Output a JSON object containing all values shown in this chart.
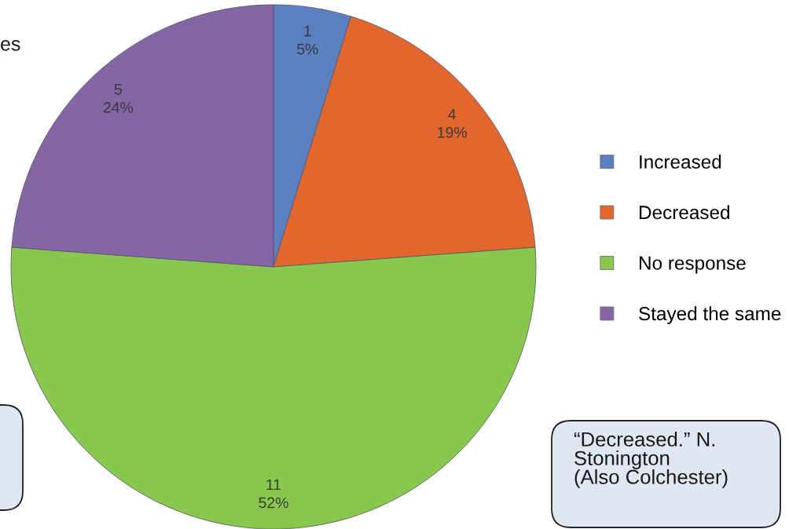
{
  "chart_data": {
    "type": "pie",
    "categories": [
      "Increased",
      "Decreased",
      "No response",
      "Stayed the same"
    ],
    "values": [
      1,
      4,
      11,
      5
    ],
    "colors": [
      "#5b80bf",
      "#e2672e",
      "#88c84e",
      "#8466a4"
    ],
    "value_labels": [
      "1\n5%",
      "4\n19%",
      "11\n52%",
      "5\n24%"
    ],
    "legend": "right",
    "annotations": [
      "es",
      "“Decreased.” N.\nStonington\n(Also Colchester)"
    ]
  }
}
